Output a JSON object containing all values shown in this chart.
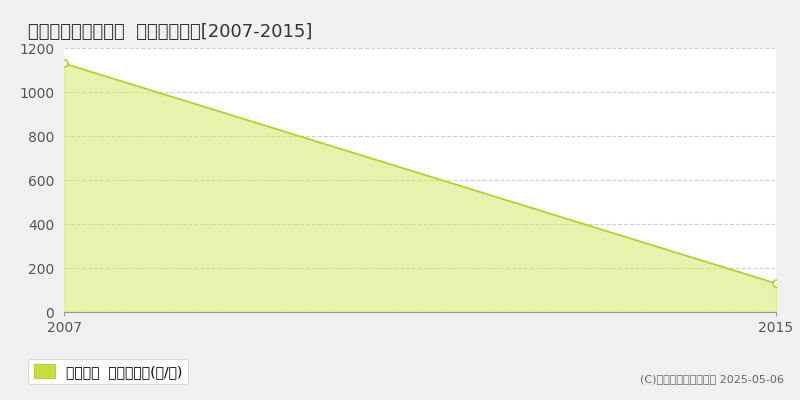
{
  "title": "高山市国府町西門前  林地価格推移[2007-2015]",
  "x": [
    2007,
    2015
  ],
  "y": [
    1130,
    130
  ],
  "y_min": 0,
  "y_max": 1200,
  "y_tick_interval": 200,
  "x_ticks": [
    2007,
    2015
  ],
  "fill_color": "#d4e96b",
  "fill_alpha": 0.55,
  "line_color": "#b8cc30",
  "line_width": 1.2,
  "marker_color": "#b8cc30",
  "marker_size": 5,
  "grid_color": "#bbbbbb",
  "grid_style": "dashed",
  "grid_alpha": 0.7,
  "plot_bg_color": "#ffffff",
  "outer_bg_color": "#f0f0f0",
  "legend_label": "林地価格  平均坪単価(円/坪)",
  "legend_marker_color": "#c8dc40",
  "copyright_text": "(C)土地価格ドットコム 2025-05-06",
  "title_fontsize": 13,
  "axis_fontsize": 10,
  "legend_fontsize": 10
}
